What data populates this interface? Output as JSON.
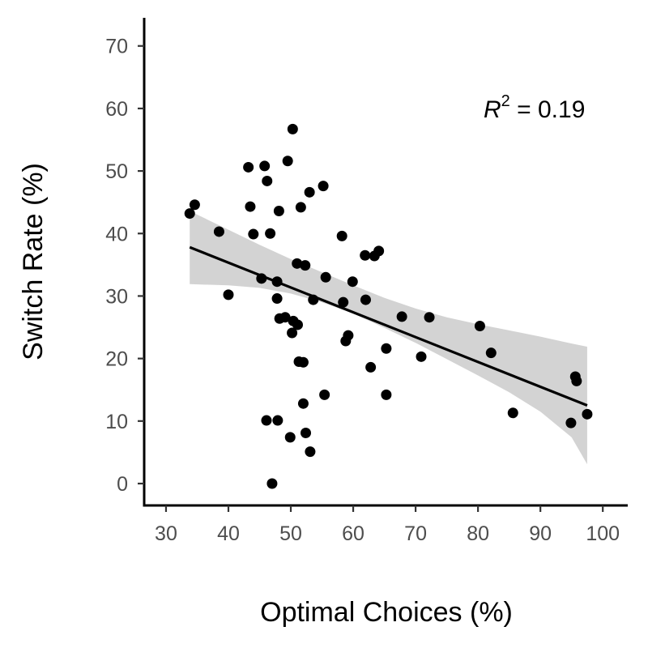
{
  "chart_data": {
    "type": "scatter",
    "xlabel": "Optimal Choices (%)",
    "ylabel": "Switch Rate (%)",
    "xlim": [
      26.5,
      104
    ],
    "ylim": [
      -3.5,
      74.5
    ],
    "xticks": [
      30,
      40,
      50,
      60,
      70,
      80,
      90,
      100
    ],
    "yticks": [
      0,
      10,
      20,
      30,
      40,
      50,
      60,
      70
    ],
    "annotation": {
      "var": "R",
      "sup": "2",
      "rest": " = 0.19"
    },
    "grid": false,
    "legend": "none",
    "colors": {
      "point": "#000000",
      "line": "#000000",
      "band": "#d3d3d3",
      "axis": "#000000",
      "tick_text": "#4d4d4d"
    },
    "points": [
      {
        "x": 33.8,
        "y": 43.2
      },
      {
        "x": 34.6,
        "y": 44.6
      },
      {
        "x": 38.5,
        "y": 40.3
      },
      {
        "x": 40.0,
        "y": 30.2
      },
      {
        "x": 43.2,
        "y": 50.6
      },
      {
        "x": 43.5,
        "y": 44.3
      },
      {
        "x": 44.0,
        "y": 39.9
      },
      {
        "x": 45.3,
        "y": 32.8
      },
      {
        "x": 45.8,
        "y": 50.8
      },
      {
        "x": 46.1,
        "y": 10.1
      },
      {
        "x": 46.2,
        "y": 48.4
      },
      {
        "x": 46.7,
        "y": 40.0
      },
      {
        "x": 47.0,
        "y": 0.0
      },
      {
        "x": 47.8,
        "y": 32.3
      },
      {
        "x": 47.8,
        "y": 29.6
      },
      {
        "x": 47.9,
        "y": 10.1
      },
      {
        "x": 48.1,
        "y": 43.6
      },
      {
        "x": 48.2,
        "y": 26.4
      },
      {
        "x": 49.1,
        "y": 26.6
      },
      {
        "x": 49.5,
        "y": 51.6
      },
      {
        "x": 49.9,
        "y": 7.4
      },
      {
        "x": 50.2,
        "y": 24.1
      },
      {
        "x": 50.3,
        "y": 56.7
      },
      {
        "x": 50.4,
        "y": 26.0
      },
      {
        "x": 51.0,
        "y": 35.2
      },
      {
        "x": 51.1,
        "y": 25.4
      },
      {
        "x": 51.3,
        "y": 19.5
      },
      {
        "x": 51.6,
        "y": 44.2
      },
      {
        "x": 52.0,
        "y": 19.4
      },
      {
        "x": 52.0,
        "y": 12.8
      },
      {
        "x": 52.3,
        "y": 34.9
      },
      {
        "x": 52.4,
        "y": 8.1
      },
      {
        "x": 53.0,
        "y": 46.6
      },
      {
        "x": 53.1,
        "y": 5.1
      },
      {
        "x": 53.6,
        "y": 29.4
      },
      {
        "x": 55.2,
        "y": 47.6
      },
      {
        "x": 55.4,
        "y": 14.2
      },
      {
        "x": 55.6,
        "y": 33.0
      },
      {
        "x": 58.2,
        "y": 39.6
      },
      {
        "x": 58.4,
        "y": 29.0
      },
      {
        "x": 58.8,
        "y": 22.8
      },
      {
        "x": 59.2,
        "y": 23.7
      },
      {
        "x": 59.9,
        "y": 32.3
      },
      {
        "x": 61.9,
        "y": 36.5
      },
      {
        "x": 62.0,
        "y": 29.4
      },
      {
        "x": 62.8,
        "y": 18.6
      },
      {
        "x": 63.4,
        "y": 36.4
      },
      {
        "x": 64.1,
        "y": 37.2
      },
      {
        "x": 65.3,
        "y": 21.6
      },
      {
        "x": 65.3,
        "y": 14.2
      },
      {
        "x": 67.8,
        "y": 26.7
      },
      {
        "x": 70.9,
        "y": 20.3
      },
      {
        "x": 72.2,
        "y": 26.6
      },
      {
        "x": 80.3,
        "y": 25.2
      },
      {
        "x": 82.1,
        "y": 20.9
      },
      {
        "x": 85.6,
        "y": 11.3
      },
      {
        "x": 94.9,
        "y": 9.7
      },
      {
        "x": 95.6,
        "y": 17.1
      },
      {
        "x": 95.8,
        "y": 16.4
      },
      {
        "x": 97.5,
        "y": 11.1
      }
    ],
    "fit_line": [
      {
        "x": 33.8,
        "y": 37.8
      },
      {
        "x": 97.5,
        "y": 12.5
      }
    ],
    "confidence_band": {
      "x": [
        33.8,
        40,
        45,
        50,
        55,
        60,
        65,
        70,
        75,
        80,
        85,
        90,
        95,
        97.5
      ],
      "upper": [
        43.6,
        40.6,
        38.2,
        35.9,
        33.8,
        31.7,
        29.7,
        28.0,
        26.6,
        25.5,
        24.5,
        23.5,
        22.4,
        21.9
      ],
      "lower": [
        31.9,
        31.7,
        31.3,
        30.4,
        29.0,
        27.2,
        24.9,
        22.5,
        19.9,
        17.3,
        14.6,
        11.5,
        7.4,
        3.1
      ]
    }
  }
}
